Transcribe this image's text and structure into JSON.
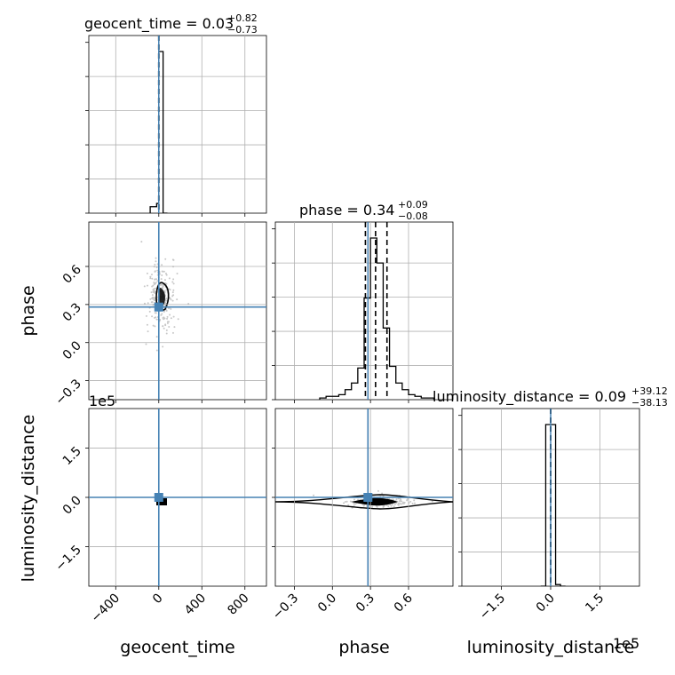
{
  "chart_data": {
    "type": "corner",
    "parameters": [
      {
        "name": "geocent_time",
        "label": "geocent_time",
        "title": {
          "prefix": "geocent_time = ",
          "median": "0.03",
          "plus": "+0.82",
          "minus": "−0.73"
        },
        "xlim": [
          -650,
          1000
        ],
        "ticks": [
          -400,
          0,
          400,
          800
        ],
        "tick_labels": [
          "−400",
          "0",
          "400",
          "800"
        ],
        "hist": {
          "edges": [
            -80,
            -20,
            0,
            40,
            80
          ],
          "counts": [
            0.04,
            0.06,
            1.0,
            0.0
          ]
        },
        "quantile_lines": [
          -0.7,
          0.03,
          0.85
        ],
        "injection": 0
      },
      {
        "name": "phase",
        "label": "phase",
        "title": {
          "prefix": "phase = ",
          "median": "0.34",
          "plus": "+0.09",
          "minus": "−0.08"
        },
        "xlim": [
          -0.45,
          0.95
        ],
        "ticks": [
          -0.3,
          0.0,
          0.3,
          0.6
        ],
        "tick_labels": [
          "−0.3",
          "0.0",
          "0.3",
          "0.6"
        ],
        "hist": {
          "edges": [
            -0.1,
            -0.05,
            0.0,
            0.05,
            0.1,
            0.15,
            0.2,
            0.25,
            0.3,
            0.35,
            0.4,
            0.45,
            0.5,
            0.55,
            0.6,
            0.65,
            0.7,
            0.75,
            0.8
          ],
          "counts": [
            0.01,
            0.02,
            0.02,
            0.03,
            0.06,
            0.1,
            0.19,
            0.61,
            0.97,
            0.82,
            0.43,
            0.2,
            0.1,
            0.06,
            0.03,
            0.02,
            0.01,
            0.01
          ]
        },
        "quantile_lines": [
          0.26,
          0.34,
          0.43
        ],
        "injection": 0.28
      },
      {
        "name": "luminosity_distance",
        "label": "luminosity_distance",
        "title": {
          "prefix": "luminosity_distance = ",
          "median": "0.09",
          "plus": "+39.12",
          "minus": "−38.13"
        },
        "xlim": [
          -2.7,
          2.7
        ],
        "ticks": [
          -1.5,
          0.0,
          1.5
        ],
        "tick_labels": [
          "−1.5",
          "0.0",
          "1.5"
        ],
        "scale_label": "1e5",
        "hist": {
          "edges": [
            -0.3,
            -0.15,
            0.0,
            0.15,
            0.3,
            0.45
          ],
          "counts": [
            0.0,
            1.0,
            1.0,
            0.01,
            0.0
          ]
        },
        "quantile_lines": [
          -0.0004,
          9e-07,
          0.0004
        ],
        "injection": 0
      }
    ],
    "panels": {
      "phase_vs_geocent_time": {
        "ylim": [
          -0.45,
          0.95
        ],
        "yticks": [
          -0.3,
          0.0,
          0.3,
          0.6
        ],
        "ytick_labels": [
          "−0.3",
          "0.0",
          "0.3",
          "0.6"
        ],
        "injection": [
          0,
          0.28
        ]
      },
      "luminosity_distance_vs_geocent_time": {
        "ylim": [
          -2.7,
          2.7
        ],
        "yticks": [
          -1.5,
          0.0,
          1.5
        ],
        "ytick_labels": [
          "−1.5",
          "0.0",
          "1.5"
        ],
        "scale_label": "1e5",
        "injection": [
          0,
          0
        ]
      },
      "luminosity_distance_vs_phase": {
        "injection": [
          0.28,
          0
        ]
      }
    },
    "colors": {
      "hist": "#000000",
      "injection": "#4682b4",
      "samples": "#c8c8c8",
      "grid": "#b0b0b0"
    },
    "grid": true
  }
}
